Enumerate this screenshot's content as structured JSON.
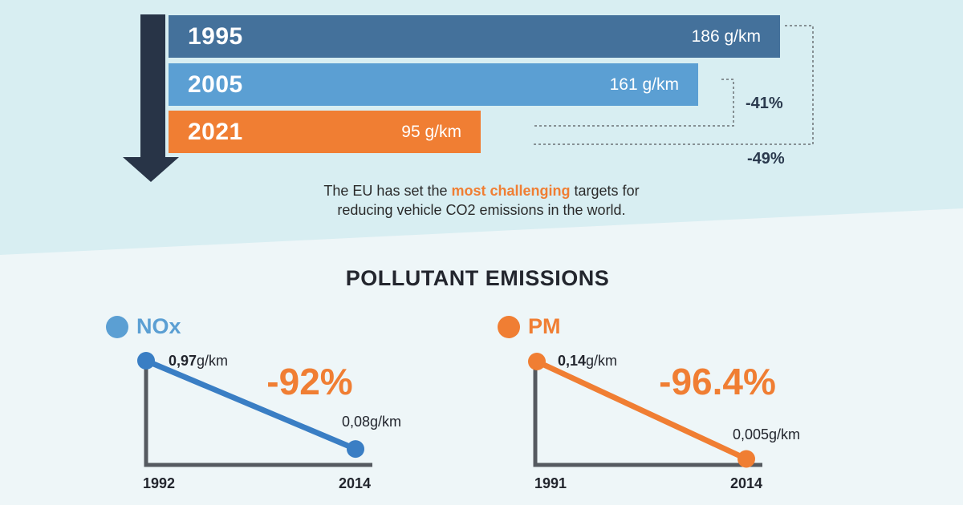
{
  "colors": {
    "top_bg": "#d8eef2",
    "bottom_bg": "#eef6f8",
    "bar_1995": "#44719b",
    "bar_2005": "#5b9fd3",
    "bar_2021": "#f07e33",
    "arrow": "#283447",
    "nox": "#5b9fd3",
    "nox_line": "#3a7ec4",
    "pm": "#f07e33",
    "axis": "#555a60",
    "dark_text": "#23262e"
  },
  "chart_data": [
    {
      "type": "bar",
      "orientation": "horizontal",
      "categories": [
        "1995",
        "2005",
        "2021"
      ],
      "values": [
        186,
        161,
        95
      ],
      "value_labels": [
        "186 g/km",
        "161 g/km",
        "95 g/km"
      ],
      "unit": "g/km",
      "annotations": [
        {
          "from": "2005",
          "to": "2021",
          "label": "-41%"
        },
        {
          "from": "1995",
          "to": "2021",
          "label": "-49%"
        }
      ]
    },
    {
      "type": "line",
      "name": "NOx",
      "x": [
        "1992",
        "2014"
      ],
      "y": [
        0.97,
        0.08
      ],
      "point_labels": [
        {
          "bold": "0,97",
          "unit": "g/km"
        },
        {
          "bold": "",
          "unit": "0,08g/km"
        }
      ],
      "change_label": "-92%"
    },
    {
      "type": "line",
      "name": "PM",
      "x": [
        "1991",
        "2014"
      ],
      "y": [
        0.14,
        0.005
      ],
      "point_labels": [
        {
          "bold": "0,14",
          "unit": "g/km"
        },
        {
          "bold": "",
          "unit": "0,005g/km"
        }
      ],
      "change_label": "-96.4%"
    }
  ],
  "caption": {
    "before": "The EU has set the ",
    "highlight": "most challenging",
    "after": " targets for",
    "line2": "reducing vehicle CO2 emissions in the world."
  },
  "section_title": "POLLUTANT EMISSIONS"
}
